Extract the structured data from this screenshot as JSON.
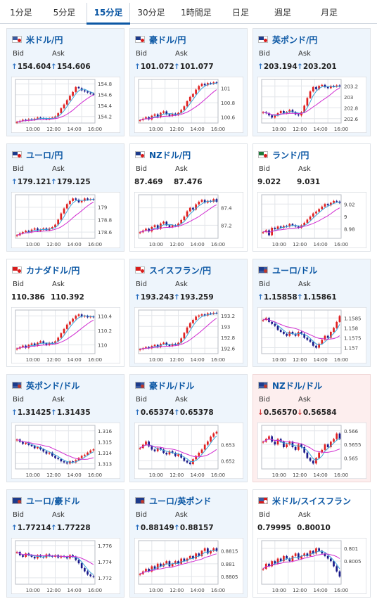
{
  "tabs": [
    {
      "label": "1分足",
      "active": false
    },
    {
      "label": "5分足",
      "active": false
    },
    {
      "label": "15分足",
      "active": true
    },
    {
      "label": "30分足",
      "active": false
    },
    {
      "label": "1時間足",
      "active": false
    },
    {
      "label": "日足",
      "active": false
    },
    {
      "label": "週足",
      "active": false
    },
    {
      "label": "月足",
      "active": false
    }
  ],
  "labels": {
    "bid": "Bid",
    "ask": "Ask"
  },
  "colors": {
    "up": "#2a6fc0",
    "down": "#d23a3a",
    "title": "#0b57a4",
    "candle_up": "#e02020",
    "candle_down": "#1a1a8a",
    "ma_short": "#3aa3d8",
    "ma_long": "#d02bd0"
  },
  "x_ticks": [
    "10:00",
    "12:00",
    "14:00",
    "16:00"
  ],
  "cards": [
    {
      "title": "米ドル/円",
      "flag": "us-jp",
      "bid": "154.604",
      "ask": "154.606",
      "trend": "up",
      "chart_data": {
        "type": "candlestick",
        "yticks": [
          "154.8",
          "154.6",
          "154.4",
          "154.2"
        ],
        "ylim": [
          154.08,
          154.88
        ],
        "closes": [
          154.1,
          154.12,
          154.14,
          154.13,
          154.15,
          154.14,
          154.16,
          154.18,
          154.17,
          154.16,
          154.15,
          154.17,
          154.18,
          154.2,
          154.26,
          154.35,
          154.42,
          154.5,
          154.58,
          154.65,
          154.74,
          154.72,
          154.68,
          154.66,
          154.64,
          154.62,
          154.6
        ]
      }
    },
    {
      "title": "豪ドル/円",
      "flag": "au-jp",
      "bid": "101.072",
      "ask": "101.077",
      "trend": "up",
      "chart_data": {
        "type": "candlestick",
        "yticks": [
          "101",
          "100.8",
          "100.6"
        ],
        "ylim": [
          100.52,
          101.12
        ],
        "closes": [
          100.56,
          100.58,
          100.6,
          100.57,
          100.62,
          100.64,
          100.6,
          100.66,
          100.68,
          100.64,
          100.62,
          100.65,
          100.63,
          100.66,
          100.7,
          100.75,
          100.82,
          100.88,
          100.92,
          100.98,
          101.03,
          101.06,
          101.04,
          101.07,
          101.06,
          101.08,
          101.07
        ]
      }
    },
    {
      "title": "英ポンド/円",
      "flag": "gb-jp",
      "bid": "203.194",
      "ask": "203.201",
      "trend": "up",
      "chart_data": {
        "type": "candlestick",
        "yticks": [
          "203.2",
          "203",
          "202.8",
          "202.6"
        ],
        "ylim": [
          202.52,
          203.32
        ],
        "closes": [
          202.72,
          202.7,
          202.66,
          202.62,
          202.66,
          202.7,
          202.74,
          202.7,
          202.72,
          202.76,
          202.72,
          202.68,
          202.66,
          202.72,
          202.84,
          202.98,
          203.1,
          203.18,
          203.14,
          203.2,
          203.22,
          203.18,
          203.16,
          203.2,
          203.19,
          203.21,
          203.19
        ]
      }
    },
    {
      "title": "ユーロ/円",
      "flag": "eu-jp",
      "bid": "179.121",
      "ask": "179.125",
      "trend": "up",
      "chart_data": {
        "type": "candlestick",
        "yticks": [
          "179",
          "178.8",
          "178.6"
        ],
        "ylim": [
          178.5,
          179.2
        ],
        "closes": [
          178.55,
          178.58,
          178.6,
          178.62,
          178.6,
          178.64,
          178.66,
          178.62,
          178.64,
          178.66,
          178.63,
          178.66,
          178.68,
          178.72,
          178.8,
          178.9,
          178.98,
          179.05,
          179.1,
          179.14,
          179.12,
          179.08,
          179.1,
          179.14,
          179.12,
          179.13,
          179.12
        ]
      }
    },
    {
      "title": "NZドル/円",
      "flag": "nz-jp",
      "bid": "87.469",
      "ask": "87.476",
      "trend": "flat",
      "chart_data": {
        "type": "candlestick",
        "yticks": [
          "87.4",
          "87.2"
        ],
        "ylim": [
          87.05,
          87.55
        ],
        "closes": [
          87.12,
          87.14,
          87.16,
          87.13,
          87.18,
          87.2,
          87.16,
          87.22,
          87.24,
          87.2,
          87.18,
          87.2,
          87.19,
          87.22,
          87.26,
          87.3,
          87.36,
          87.4,
          87.38,
          87.44,
          87.47,
          87.49,
          87.46,
          87.48,
          87.47,
          87.5,
          87.47
        ]
      }
    },
    {
      "title": "ランド/円",
      "flag": "za-jp",
      "bid": "9.022",
      "ask": "9.031",
      "trend": "flat",
      "chart_data": {
        "type": "candlestick",
        "yticks": [
          "9.02",
          "9",
          "8.98"
        ],
        "ylim": [
          8.965,
          9.035
        ],
        "closes": [
          8.975,
          8.978,
          8.97,
          8.982,
          8.98,
          8.984,
          8.982,
          8.985,
          8.984,
          8.988,
          8.986,
          8.984,
          8.982,
          8.986,
          8.99,
          8.995,
          9.0,
          9.005,
          9.008,
          9.012,
          9.016,
          9.02,
          9.018,
          9.022,
          9.025,
          9.024,
          9.022
        ]
      }
    },
    {
      "title": "カナダドル/円",
      "flag": "ca-jp",
      "bid": "110.386",
      "ask": "110.392",
      "trend": "flat",
      "chart_data": {
        "type": "candlestick",
        "yticks": [
          "110.4",
          "110.2",
          "110"
        ],
        "ylim": [
          109.88,
          110.48
        ],
        "closes": [
          109.95,
          109.97,
          109.99,
          109.96,
          110.0,
          110.02,
          109.99,
          110.03,
          110.05,
          110.02,
          110.0,
          110.03,
          110.02,
          110.05,
          110.1,
          110.16,
          110.22,
          110.28,
          110.32,
          110.36,
          110.4,
          110.42,
          110.39,
          110.4,
          110.38,
          110.39,
          110.38
        ]
      }
    },
    {
      "title": "スイスフラン/円",
      "flag": "ch-jp",
      "bid": "193.243",
      "ask": "193.259",
      "trend": "up",
      "chart_data": {
        "type": "candlestick",
        "yticks": [
          "193.2",
          "193",
          "192.8",
          "192.6"
        ],
        "ylim": [
          192.5,
          193.3
        ],
        "closes": [
          192.58,
          192.6,
          192.62,
          192.6,
          192.64,
          192.66,
          192.62,
          192.68,
          192.7,
          192.66,
          192.64,
          192.68,
          192.66,
          192.7,
          192.78,
          192.88,
          192.98,
          193.06,
          193.12,
          193.18,
          193.2,
          193.22,
          193.2,
          193.24,
          193.23,
          193.25,
          193.24
        ]
      }
    },
    {
      "title": "ユーロ/ドル",
      "flag": "eu-us",
      "bid": "1.15858",
      "ask": "1.15861",
      "trend": "up",
      "chart_data": {
        "type": "candlestick",
        "yticks": [
          "1.1585",
          "1.158",
          "1.1575",
          "1.157"
        ],
        "ylim": [
          1.1567,
          1.1589
        ],
        "closes": [
          1.1584,
          1.1585,
          1.1583,
          1.1582,
          1.1581,
          1.1579,
          1.1578,
          1.1577,
          1.1576,
          1.1578,
          1.1577,
          1.1576,
          1.1578,
          1.1577,
          1.1575,
          1.1574,
          1.1573,
          1.1571,
          1.157,
          1.1572,
          1.1574,
          1.1576,
          1.1575,
          1.1578,
          1.158,
          1.1583,
          1.1586
        ]
      }
    },
    {
      "title": "英ポンド/ドル",
      "flag": "gb-us",
      "bid": "1.31425",
      "ask": "1.31435",
      "trend": "up",
      "chart_data": {
        "type": "candlestick",
        "yticks": [
          "1.316",
          "1.315",
          "1.314",
          "1.313"
        ],
        "ylim": [
          1.3125,
          1.3165
        ],
        "closes": [
          1.3152,
          1.315,
          1.3148,
          1.3149,
          1.3147,
          1.3146,
          1.3144,
          1.3145,
          1.3143,
          1.3141,
          1.3139,
          1.314,
          1.3137,
          1.3135,
          1.3134,
          1.3132,
          1.3131,
          1.313,
          1.3132,
          1.3131,
          1.3133,
          1.3135,
          1.3137,
          1.3138,
          1.314,
          1.3142,
          1.3143
        ]
      }
    },
    {
      "title": "豪ドル/ドル",
      "flag": "au-us",
      "bid": "0.65374",
      "ask": "0.65378",
      "trend": "up",
      "chart_data": {
        "type": "candlestick",
        "yticks": [
          "0.653",
          "0.652"
        ],
        "ylim": [
          0.6515,
          0.6542
        ],
        "closes": [
          0.6528,
          0.653,
          0.6532,
          0.6529,
          0.6527,
          0.6526,
          0.6528,
          0.6527,
          0.6525,
          0.6524,
          0.6526,
          0.6525,
          0.6523,
          0.6524,
          0.6522,
          0.652,
          0.6519,
          0.6518,
          0.6521,
          0.6523,
          0.6525,
          0.6527,
          0.653,
          0.6532,
          0.6535,
          0.6537,
          0.6538
        ]
      }
    },
    {
      "title": "NZドル/ドル",
      "flag": "nz-us",
      "bid": "0.56570",
      "ask": "0.56584",
      "trend": "down",
      "chart_data": {
        "type": "candlestick",
        "yticks": [
          "0.566",
          "0.5655",
          "0.565"
        ],
        "ylim": [
          0.5646,
          0.5662
        ],
        "closes": [
          0.5656,
          0.5657,
          0.5658,
          0.5656,
          0.5655,
          0.5657,
          0.5656,
          0.5654,
          0.5655,
          0.5656,
          0.5654,
          0.5653,
          0.5655,
          0.5654,
          0.5652,
          0.565,
          0.5649,
          0.5648,
          0.565,
          0.5652,
          0.5653,
          0.5655,
          0.5654,
          0.5656,
          0.5657,
          0.5659,
          0.5657
        ]
      }
    },
    {
      "title": "ユーロ/豪ドル",
      "flag": "eu-au",
      "bid": "1.77214",
      "ask": "1.77228",
      "trend": "up",
      "chart_data": {
        "type": "candlestick",
        "yticks": [
          "1.776",
          "1.774",
          "1.772"
        ],
        "ylim": [
          1.7712,
          1.7766
        ],
        "closes": [
          1.7752,
          1.7748,
          1.7746,
          1.775,
          1.7748,
          1.7746,
          1.7744,
          1.7748,
          1.7746,
          1.7745,
          1.7749,
          1.7747,
          1.7746,
          1.7748,
          1.7745,
          1.7747,
          1.7746,
          1.7744,
          1.7748,
          1.7746,
          1.7742,
          1.7738,
          1.7732,
          1.7728,
          1.7724,
          1.7722,
          1.7721
        ]
      }
    },
    {
      "title": "ユーロ/英ポンド",
      "flag": "eu-gb",
      "bid": "0.88149",
      "ask": "0.88157",
      "trend": "up",
      "chart_data": {
        "type": "candlestick",
        "yticks": [
          "0.8815",
          "0.881",
          "0.8805"
        ],
        "ylim": [
          0.8802,
          0.8819
        ],
        "closes": [
          0.8806,
          0.8807,
          0.8808,
          0.8807,
          0.8809,
          0.8808,
          0.881,
          0.8809,
          0.881,
          0.8811,
          0.8809,
          0.881,
          0.8811,
          0.881,
          0.8812,
          0.8811,
          0.8812,
          0.8813,
          0.8812,
          0.8814,
          0.8813,
          0.8815,
          0.8816,
          0.8814,
          0.8815,
          0.8816,
          0.8815
        ]
      }
    },
    {
      "title": "米ドル/スイスフラン",
      "flag": "us-ch",
      "bid": "0.79995",
      "ask": "0.80010",
      "trend": "flat",
      "chart_data": {
        "type": "candlestick",
        "yticks": [
          "0.801",
          "0.8005"
        ],
        "ylim": [
          0.7996,
          0.8013
        ],
        "closes": [
          0.8002,
          0.8004,
          0.8003,
          0.8005,
          0.8004,
          0.8006,
          0.8005,
          0.8007,
          0.8006,
          0.8005,
          0.8007,
          0.8008,
          0.8006,
          0.8007,
          0.8008,
          0.8007,
          0.8009,
          0.8008,
          0.801,
          0.8009,
          0.8008,
          0.8007,
          0.8006,
          0.8005,
          0.8003,
          0.8001,
          0.7999
        ]
      }
    }
  ]
}
